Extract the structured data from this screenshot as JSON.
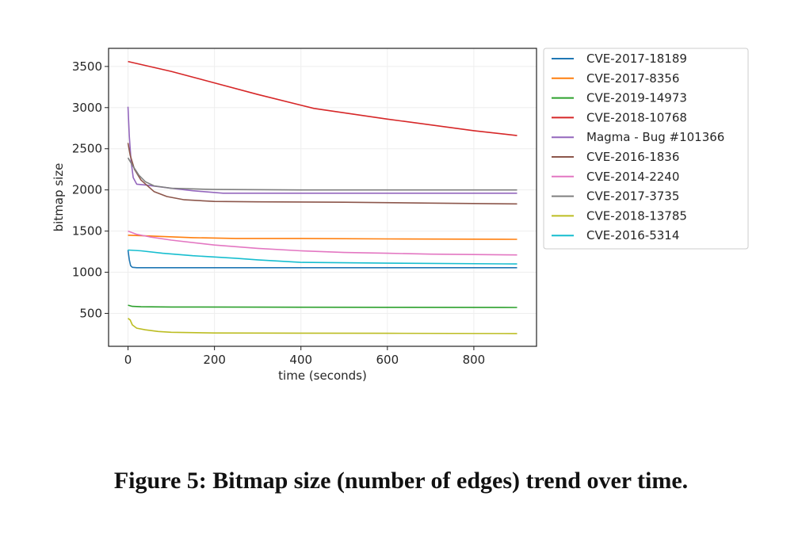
{
  "caption": "Figure 5: Bitmap size (number of edges) trend over time.",
  "chart_data": {
    "type": "line",
    "title": "",
    "xlabel": "time (seconds)",
    "ylabel": "bitmap size",
    "xlim": [
      -45,
      945
    ],
    "ylim": [
      100,
      3720
    ],
    "xticks": [
      0,
      200,
      400,
      600,
      800
    ],
    "yticks": [
      500,
      1000,
      1500,
      2000,
      2500,
      3000,
      3500
    ],
    "grid": true,
    "legend_position": "outside-right",
    "series": [
      {
        "name": "CVE-2017-18189",
        "color": "#1f77b4",
        "x": [
          0,
          3,
          6,
          10,
          20,
          50,
          100,
          900
        ],
        "y": [
          1270,
          1150,
          1080,
          1060,
          1055,
          1055,
          1055,
          1055
        ]
      },
      {
        "name": "CVE-2017-8356",
        "color": "#ff7f0e",
        "x": [
          0,
          50,
          150,
          250,
          400,
          600,
          900
        ],
        "y": [
          1450,
          1440,
          1420,
          1410,
          1410,
          1405,
          1400
        ]
      },
      {
        "name": "CVE-2019-14973",
        "color": "#2ca02c",
        "x": [
          0,
          10,
          30,
          100,
          300,
          600,
          900
        ],
        "y": [
          600,
          585,
          580,
          578,
          576,
          574,
          572
        ]
      },
      {
        "name": "CVE-2018-10768",
        "color": "#d62728",
        "x": [
          0,
          100,
          200,
          300,
          430,
          600,
          800,
          900
        ],
        "y": [
          3560,
          3440,
          3300,
          3160,
          2990,
          2860,
          2720,
          2660
        ]
      },
      {
        "name": "Magma - Bug #101366",
        "color": "#9467bd",
        "x": [
          0,
          3,
          7,
          12,
          20,
          40,
          100,
          150,
          220,
          300,
          600,
          900
        ],
        "y": [
          3010,
          2650,
          2350,
          2150,
          2070,
          2060,
          2020,
          1990,
          1960,
          1960,
          1960,
          1960
        ]
      },
      {
        "name": "CVE-2016-1836",
        "color": "#8c564b",
        "x": [
          0,
          5,
          15,
          30,
          60,
          90,
          130,
          200,
          300,
          500,
          700,
          900
        ],
        "y": [
          2570,
          2420,
          2250,
          2120,
          1980,
          1920,
          1880,
          1860,
          1855,
          1850,
          1840,
          1830
        ]
      },
      {
        "name": "CVE-2014-2240",
        "color": "#e377c2",
        "x": [
          0,
          20,
          50,
          100,
          200,
          300,
          400,
          500,
          600,
          700,
          800,
          900
        ],
        "y": [
          1500,
          1460,
          1430,
          1390,
          1330,
          1290,
          1260,
          1240,
          1230,
          1220,
          1215,
          1210
        ]
      },
      {
        "name": "CVE-2017-3735",
        "color": "#7f7f7f",
        "x": [
          0,
          10,
          25,
          40,
          60,
          100,
          200,
          400,
          600,
          900
        ],
        "y": [
          2390,
          2300,
          2180,
          2100,
          2050,
          2020,
          2005,
          2000,
          2000,
          2000
        ]
      },
      {
        "name": "CVE-2018-13785",
        "color": "#bcbd22",
        "x": [
          0,
          5,
          10,
          20,
          40,
          70,
          100,
          200,
          400,
          600,
          900
        ],
        "y": [
          440,
          420,
          360,
          320,
          300,
          280,
          270,
          262,
          260,
          258,
          255
        ]
      },
      {
        "name": "CVE-2016-5314",
        "color": "#17becf",
        "x": [
          0,
          30,
          80,
          150,
          250,
          300,
          400,
          600,
          900
        ],
        "y": [
          1270,
          1260,
          1230,
          1200,
          1170,
          1150,
          1120,
          1110,
          1100
        ]
      }
    ]
  }
}
